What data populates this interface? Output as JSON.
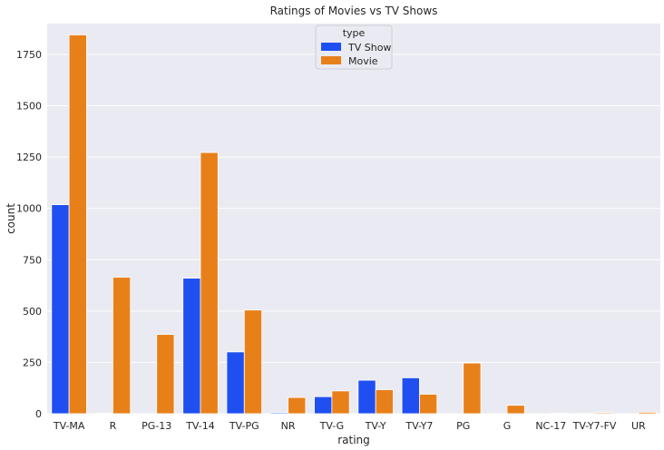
{
  "chart_data": {
    "type": "bar",
    "title": "Ratings of Movies vs TV Shows",
    "xlabel": "rating",
    "ylabel": "count",
    "ylim": [
      0,
      1900
    ],
    "yticks": [
      0,
      250,
      500,
      750,
      1000,
      1250,
      1500,
      1750
    ],
    "categories": [
      "TV-MA",
      "R",
      "PG-13",
      "TV-14",
      "TV-PG",
      "NR",
      "TV-G",
      "TV-Y",
      "TV-Y7",
      "PG",
      "G",
      "NC-17",
      "TV-Y7-FV",
      "UR"
    ],
    "series": [
      {
        "name": "TV Show",
        "color": "#1f4ff0",
        "values": [
          1018,
          2,
          0,
          660,
          301,
          5,
          83,
          163,
          175,
          0,
          0,
          0,
          1,
          0
        ]
      },
      {
        "name": "Movie",
        "color": "#e8801a",
        "values": [
          1845,
          665,
          386,
          1272,
          505,
          79,
          111,
          117,
          95,
          247,
          41,
          3,
          5,
          7
        ]
      }
    ],
    "grid": true,
    "legend": {
      "title": "type",
      "placement": "top-center"
    },
    "background": "#eaeaf2"
  }
}
